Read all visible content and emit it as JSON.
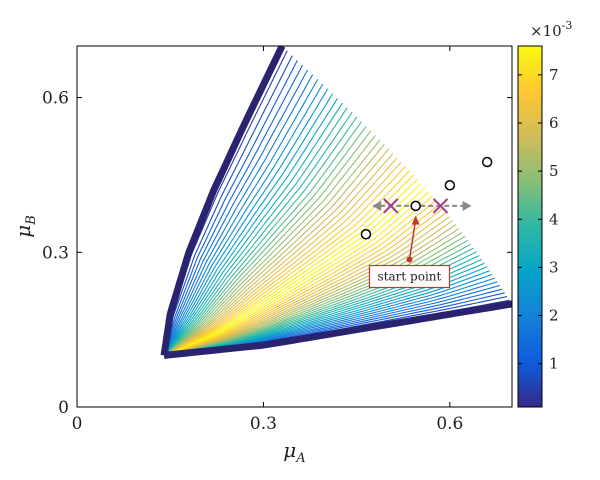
{
  "chart_data": {
    "type": "contour",
    "title": "",
    "xlabel": "μ",
    "xlabel_sub": "A",
    "ylabel": "μ",
    "ylabel_sub": "B",
    "xlim": [
      0,
      0.7
    ],
    "ylim": [
      0,
      0.7
    ],
    "xticks": [
      0,
      0.3,
      0.6
    ],
    "xtick_labels": [
      "0",
      "0.3",
      "0.6"
    ],
    "yticks": [
      0,
      0.3,
      0.6
    ],
    "ytick_labels": [
      "0",
      "0.3",
      "0.6"
    ],
    "colorbar": {
      "min": 0.0001,
      "max": 0.0076,
      "exponent_label": "×10",
      "exponent_power": "-3",
      "ticks": [
        1,
        2,
        3,
        4,
        5,
        6,
        7
      ],
      "tick_labels": [
        "1",
        "2",
        "3",
        "4",
        "5",
        "6",
        "7"
      ],
      "tick_scale": 0.001,
      "colormap": "parula"
    },
    "contour_region": {
      "vertex": [
        0.14,
        0.1
      ],
      "upper_boundary": [
        [
          0.14,
          0.1
        ],
        [
          0.15,
          0.18
        ],
        [
          0.18,
          0.3
        ],
        [
          0.22,
          0.42
        ],
        [
          0.27,
          0.55
        ],
        [
          0.33,
          0.7
        ]
      ],
      "lower_boundary": [
        [
          0.14,
          0.1
        ],
        [
          0.3,
          0.12
        ],
        [
          0.45,
          0.15
        ],
        [
          0.6,
          0.18
        ],
        [
          0.7,
          0.2
        ]
      ],
      "peak_direction": [
        0.6,
        0.3
      ]
    },
    "circle_markers": [
      {
        "x": 0.465,
        "y": 0.335
      },
      {
        "x": 0.545,
        "y": 0.39
      },
      {
        "x": 0.6,
        "y": 0.43
      },
      {
        "x": 0.66,
        "y": 0.475
      }
    ],
    "cross_markers": [
      {
        "x": 0.505,
        "y": 0.39
      },
      {
        "x": 0.585,
        "y": 0.39
      }
    ],
    "arrow": {
      "x_from": 0.475,
      "x_to": 0.635,
      "y": 0.39,
      "color": "#8a8a8a"
    },
    "annotation": {
      "text": "start point",
      "anchor_x": 0.535,
      "anchor_y": 0.255,
      "target_x": 0.545,
      "target_y": 0.375,
      "color": "#c0392b"
    }
  }
}
